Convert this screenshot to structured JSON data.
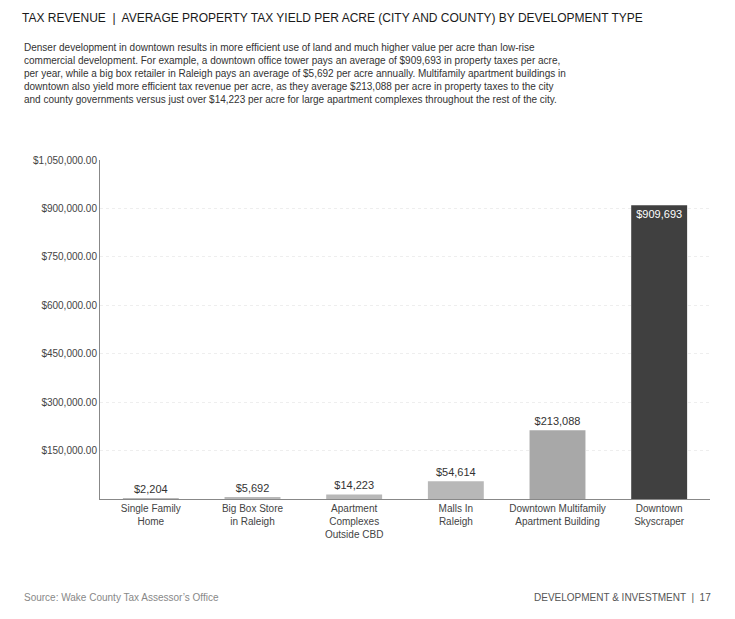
{
  "chart_data": {
    "type": "bar",
    "title": "TAX REVENUE  |  AVERAGE PROPERTY TAX YIELD PER ACRE (CITY AND COUNTY) BY DEVELOPMENT TYPE",
    "subtitle": "Denser development in downtown results in more efficient use of land and much higher value per acre than low-rise\ncommercial development. For example, a downtown office tower pays an average of $909,693 in property taxes per acre,\nper year, while a big box retailer in Raleigh pays an average of $5,692 per acre annually. Multifamily apartment buildings in\ndowntown also yield more efficient tax revenue per acre, as they average $213,088 per acre in property taxes to the city\nand county governments versus just over $14,223 per acre for large apartment complexes throughout the rest of the city.",
    "categories": [
      "Single Family\nHome",
      "Big Box Store\nin Raleigh",
      "Apartment\nComplexes\nOutside CBD",
      "Malls In\nRaleigh",
      "Downtown Multifamily\nApartment Building",
      "Downtown\nSkyscraper"
    ],
    "values": [
      2204,
      5692,
      14223,
      54614,
      213088,
      909693
    ],
    "value_labels": [
      "$2,204",
      "$5,692",
      "$14,223",
      "$54,614",
      "$213,088",
      "$909,693"
    ],
    "data_labels": true,
    "colors": [
      "#b8b8b8",
      "#b8b8b8",
      "#b8b8b8",
      "#b8b8b8",
      "#a8a8a8",
      "#404040"
    ],
    "ylim": [
      0,
      1050000
    ],
    "yticks": [
      {
        "value": 150000,
        "label": "$150,000.00"
      },
      {
        "value": 300000,
        "label": "$300,000.00"
      },
      {
        "value": 450000,
        "label": "$450,000.00"
      },
      {
        "value": 600000,
        "label": "$600,000.00"
      },
      {
        "value": 750000,
        "label": "$750,000.00"
      },
      {
        "value": 900000,
        "label": "$900,000.00"
      },
      {
        "value": 1050000,
        "label": "$1,050,000.00"
      }
    ],
    "grid": true,
    "annotations": [
      "Source: Wake County Tax Assessor’s Office",
      "DEVELOPMENT & INVESTMENT  |  17"
    ]
  }
}
